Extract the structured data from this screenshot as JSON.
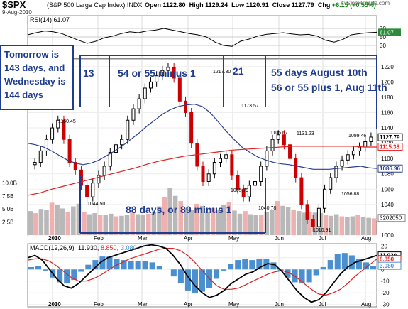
{
  "header": {
    "ticker": "$SPX",
    "index_name": "(S&P 500 Large Cap Index)",
    "exchange": "INDX",
    "date": "9-Aug-2010",
    "open_label": "Open",
    "open": "1122.80",
    "high_label": "High",
    "high": "1129.24",
    "low_label": "Low",
    "low": "1120.91",
    "close_label": "Close",
    "close": "1127.79",
    "chg_label": "Chg",
    "chg": "+6.15 (+0.55%)",
    "watermark": "© StockCharts.com"
  },
  "annotations": {
    "tomorrow_box": "Tomorrow is 143 days, and Wednesday is 144 days",
    "n13": "13",
    "n54": "54 or 55 minus 1",
    "n21": "21",
    "aug10": "55 days August 10th",
    "aug11": "56 or 55 plus 1, Aug 11th",
    "n88": "88 days, or 89 minus 1"
  },
  "colors": {
    "up_candle": "#000000",
    "down_candle": "#cc0000",
    "ma_short": "#2b3f8f",
    "ma_long": "#e02020",
    "annotation_blue": "#1f3c8f",
    "volume_up": "#b8b8b8",
    "volume_down": "#f0b0b0",
    "histogram": "#4a90d0"
  },
  "chart_data": [
    {
      "type": "line",
      "panel": "RSI",
      "title": "RSI(14) 61.07",
      "series": [
        {
          "name": "RSI(14)",
          "values": [
            55,
            60,
            64,
            62,
            58,
            50,
            42,
            35,
            40,
            48,
            52,
            58,
            62,
            60,
            64,
            66,
            70,
            66,
            62,
            58,
            55,
            50,
            38,
            30,
            28,
            40,
            45,
            52,
            56,
            58,
            60,
            57,
            55,
            56,
            52,
            42,
            38,
            44,
            55,
            58,
            60,
            61
          ]
        }
      ],
      "ylim": [
        0,
        100
      ],
      "yticks": [
        "70",
        "50",
        "30"
      ],
      "level_label": "61.07"
    },
    {
      "type": "candlestick",
      "panel": "price",
      "x": [
        "2010",
        "Feb",
        "Mar",
        "Apr",
        "May",
        "Jun",
        "Jul",
        "Aug"
      ],
      "close_series": [
        1095,
        1110,
        1125,
        1140,
        1150,
        1125,
        1095,
        1085,
        1065,
        1050,
        1068,
        1078,
        1090,
        1108,
        1118,
        1125,
        1150,
        1165,
        1178,
        1192,
        1200,
        1208,
        1215,
        1219,
        1205,
        1175,
        1160,
        1120,
        1090,
        1070,
        1080,
        1095,
        1100,
        1105,
        1078,
        1060,
        1050,
        1065,
        1070,
        1090,
        1110,
        1125,
        1131,
        1118,
        1100,
        1075,
        1040,
        1020,
        1011,
        1035,
        1060,
        1075,
        1090,
        1098,
        1105,
        1110,
        1115,
        1122,
        1128
      ],
      "ma_short": [
        1120,
        1118,
        1115,
        1110,
        1104,
        1098,
        1094,
        1092,
        1094,
        1098,
        1104,
        1110,
        1117,
        1125,
        1133,
        1142,
        1150,
        1158,
        1164,
        1168,
        1170,
        1171,
        1168,
        1160,
        1148,
        1136,
        1125,
        1115,
        1108,
        1102,
        1098,
        1095,
        1093,
        1092,
        1090,
        1088,
        1086,
        1086,
        1086,
        1087,
        1088,
        1089,
        1090,
        1088,
        1087
      ],
      "ma_long": [
        1052,
        1055,
        1060,
        1064,
        1068,
        1072,
        1076,
        1080,
        1084,
        1088,
        1093,
        1097,
        1100,
        1103,
        1105,
        1107,
        1109,
        1111,
        1112,
        1113,
        1114,
        1115,
        1116,
        1116,
        1116,
        1116,
        1116,
        1116,
        1115,
        1115
      ],
      "price_labels": [
        "1150.45",
        "1044.50",
        "1217.80",
        "1173.57",
        "1065.79",
        "1040.78",
        "1105.67",
        "1131.23",
        "1010.91",
        "1099.46",
        "1056.88"
      ],
      "yticks": [
        "1220",
        "1200",
        "1180",
        "1160",
        "1140",
        "1120",
        "1100",
        "1080",
        "1060",
        "1040",
        "1020",
        "1000"
      ],
      "last_labels": [
        "1127.79",
        "1115.38",
        "1086.96"
      ],
      "ylim": [
        1000,
        1230
      ]
    },
    {
      "type": "bar",
      "panel": "volume",
      "yticks": [
        "10.0B",
        "7.5B",
        "5.0B",
        "2.5B"
      ],
      "last_label": "3202050",
      "values": [
        4.6,
        4.2,
        5.0,
        4.8,
        6.2,
        5.8,
        5.1,
        4.5,
        5.5,
        6.0,
        4.4,
        4.0,
        4.2,
        3.8,
        3.9,
        4.1,
        3.6,
        3.7,
        3.9,
        4.3,
        4.0,
        3.8,
        4.1,
        4.4,
        5.5,
        7.2,
        9.0,
        7.5,
        6.5,
        5.2,
        4.8,
        6.0,
        5.6,
        4.5,
        5.2,
        4.9,
        5.8,
        6.3,
        4.7,
        4.1,
        4.6,
        4.0,
        3.8,
        3.9,
        4.4,
        4.8,
        6.5,
        5.6,
        5.3,
        4.9,
        4.6,
        4.3,
        4.5,
        4.3,
        4.2,
        3.9,
        3.7,
        4.0,
        3.6,
        3.4,
        3.6,
        3.8,
        3.5,
        3.3,
        3.2
      ],
      "ylim": [
        0,
        11
      ]
    },
    {
      "type": "line",
      "panel": "MACD",
      "title": "MACD(12,26,9) 11.930, 8.850, 3.080",
      "macd_label": "11.930",
      "signal_label": "8.850",
      "hist_label": "3.080",
      "yticks": [
        "20",
        "10",
        "0",
        "-10",
        "-20",
        "-30"
      ],
      "series": [
        {
          "name": "MACD",
          "values": [
            10,
            12,
            8,
            0,
            -8,
            -14,
            -16,
            -12,
            -6,
            0,
            6,
            10,
            12,
            14,
            16,
            18,
            20,
            21,
            20,
            18,
            12,
            4,
            -6,
            -14,
            -20,
            -24,
            -22,
            -18,
            -12,
            -8,
            -4,
            -2,
            2,
            5,
            4,
            -2,
            -10,
            -18,
            -24,
            -28,
            -26,
            -20,
            -12,
            -4,
            2,
            6,
            8,
            10,
            11.93
          ]
        },
        {
          "name": "Signal",
          "values": [
            8,
            9,
            9,
            7,
            3,
            -2,
            -7,
            -10,
            -10,
            -8,
            -5,
            -1,
            3,
            6,
            9,
            11,
            13,
            15,
            17,
            18,
            18,
            16,
            12,
            6,
            -1,
            -8,
            -14,
            -17,
            -17,
            -16,
            -13,
            -10,
            -7,
            -4,
            -2,
            -1,
            -3,
            -7,
            -12,
            -17,
            -21,
            -22,
            -20,
            -17,
            -12,
            -6,
            -1,
            4,
            8.85
          ]
        },
        {
          "name": "Histogram",
          "values": [
            2,
            3,
            -1,
            -7,
            -11,
            -12,
            -9,
            -2,
            4,
            8,
            11,
            11,
            9,
            8,
            7,
            7,
            7,
            6,
            3,
            0,
            -6,
            -12,
            -18,
            -20,
            -19,
            -16,
            -8,
            -1,
            5,
            8,
            9,
            8,
            9,
            9,
            6,
            -1,
            -7,
            -11,
            -12,
            -11,
            -5,
            2,
            8,
            13,
            14,
            12,
            9,
            6,
            3.08
          ]
        }
      ],
      "ylim": [
        -32,
        22
      ]
    }
  ],
  "x_axis_labels": [
    "2010",
    "Feb",
    "Mar",
    "Apr",
    "May",
    "Jun",
    "Jul",
    "Aug"
  ]
}
